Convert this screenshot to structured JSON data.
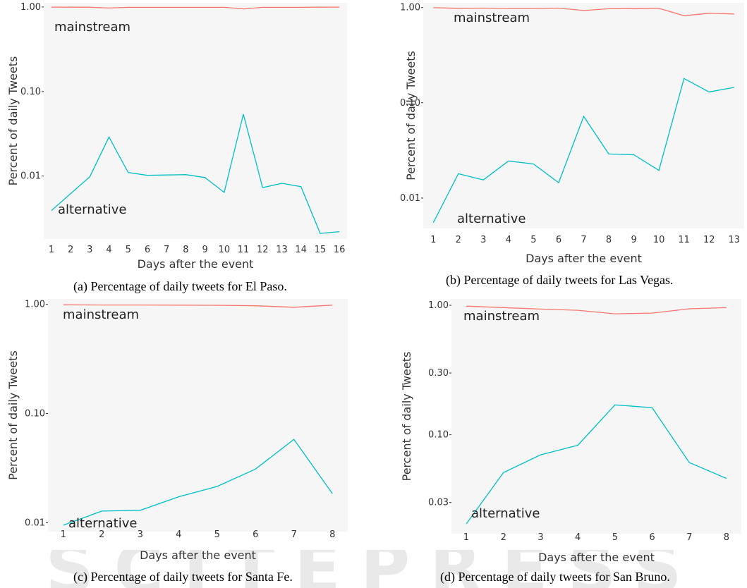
{
  "watermark": "SCITEPRESS",
  "colors": {
    "mainstream": "#f8766d",
    "alternative": "#00bfc4"
  },
  "chart_data": [
    {
      "type": "line",
      "caption": "(a) Percentage of daily tweets for El Paso.",
      "xlabel": "Days after the event",
      "ylabel": "Percent of daily Tweets",
      "y_scale": "log",
      "y_ticks": [
        1.0,
        0.1,
        0.01
      ],
      "y_tick_labels": [
        "1.00",
        "0.10",
        "0.01"
      ],
      "x": [
        1,
        2,
        3,
        4,
        5,
        6,
        7,
        8,
        9,
        10,
        11,
        12,
        13,
        14,
        15,
        16
      ],
      "series": [
        {
          "name": "mainstream",
          "values": [
            0.996,
            0.995,
            0.993,
            0.972,
            0.99,
            0.99,
            0.99,
            0.99,
            0.99,
            0.99,
            0.95,
            0.99,
            0.99,
            0.99,
            0.995,
            0.997
          ]
        },
        {
          "name": "alternative",
          "values": [
            0.0039,
            0.0062,
            0.0098,
            0.029,
            0.011,
            0.0102,
            0.0103,
            0.0104,
            0.0096,
            0.0064,
            0.054,
            0.0073,
            0.0082,
            0.0075,
            0.0021,
            0.0022
          ]
        }
      ]
    },
    {
      "type": "line",
      "caption": "(b) Percentage of daily tweets for Las Vegas.",
      "xlabel": "Days after the event",
      "ylabel": "Percent of daily Tweets",
      "y_scale": "log",
      "y_ticks": [
        1.0,
        0.1,
        0.01
      ],
      "y_tick_labels": [
        "1.00",
        "0.10",
        "0.01"
      ],
      "x": [
        1,
        2,
        3,
        4,
        5,
        6,
        7,
        8,
        9,
        10,
        11,
        12,
        13
      ],
      "series": [
        {
          "name": "mainstream",
          "values": [
            0.995,
            0.98,
            0.985,
            0.975,
            0.976,
            0.985,
            0.93,
            0.97,
            0.972,
            0.98,
            0.82,
            0.87,
            0.855
          ]
        },
        {
          "name": "alternative",
          "values": [
            0.0055,
            0.018,
            0.0155,
            0.0245,
            0.0228,
            0.0145,
            0.072,
            0.029,
            0.0285,
            0.0195,
            0.18,
            0.13,
            0.145
          ]
        }
      ]
    },
    {
      "type": "line",
      "caption": "(c) Percentage of daily tweets for Santa Fe.",
      "xlabel": "Days after the event",
      "ylabel": "Percent of daily Tweets",
      "y_scale": "log",
      "y_ticks": [
        1.0,
        0.1,
        0.01
      ],
      "y_tick_labels": [
        "1.00",
        "0.10",
        "0.01"
      ],
      "x": [
        1,
        2,
        3,
        4,
        5,
        6,
        7,
        8
      ],
      "series": [
        {
          "name": "mainstream",
          "values": [
            0.99,
            0.985,
            0.985,
            0.982,
            0.98,
            0.97,
            0.94,
            0.982
          ]
        },
        {
          "name": "alternative",
          "values": [
            0.0095,
            0.0128,
            0.013,
            0.0173,
            0.0215,
            0.031,
            0.058,
            0.0185
          ]
        }
      ]
    },
    {
      "type": "line",
      "caption": "(d) Percentage of daily tweets for San Bruno.",
      "xlabel": "Days after the event",
      "ylabel": "Percent of daily Tweets",
      "y_scale": "log",
      "y_ticks": [
        1.0,
        0.3,
        0.1,
        0.03
      ],
      "y_tick_labels": [
        "1.00",
        "0.30",
        "0.10",
        "0.03"
      ],
      "x": [
        1,
        2,
        3,
        4,
        5,
        6,
        7,
        8
      ],
      "series": [
        {
          "name": "mainstream",
          "values": [
            0.985,
            0.96,
            0.935,
            0.915,
            0.86,
            0.87,
            0.94,
            0.96
          ]
        },
        {
          "name": "alternative",
          "values": [
            0.0205,
            0.051,
            0.07,
            0.083,
            0.17,
            0.162,
            0.061,
            0.046
          ]
        }
      ]
    }
  ]
}
